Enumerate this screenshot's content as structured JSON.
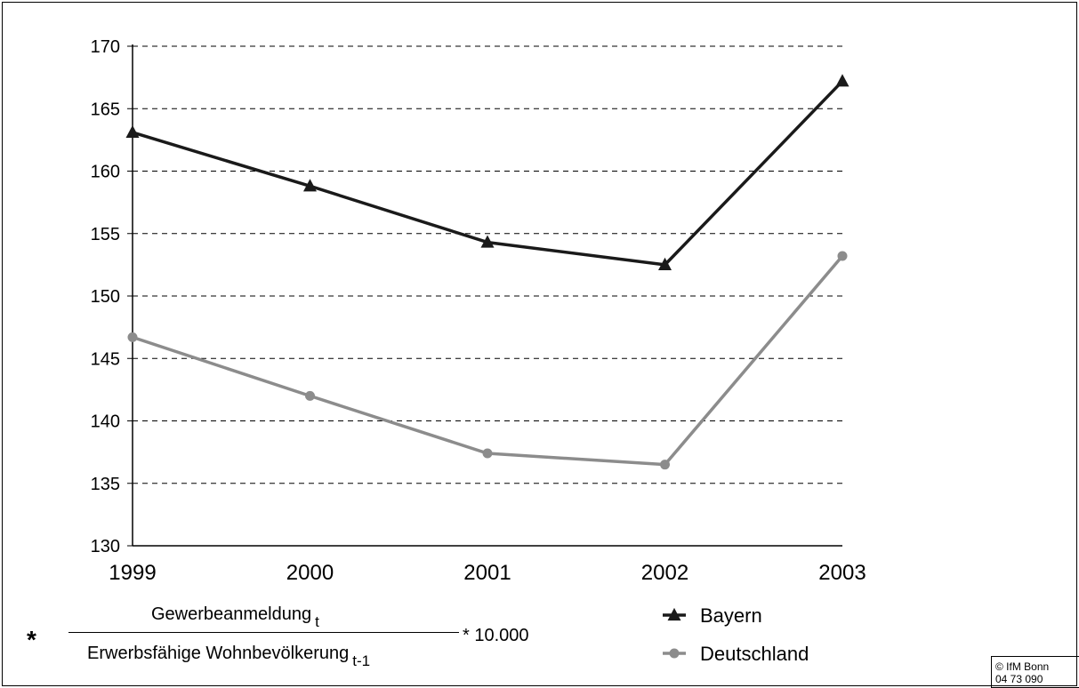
{
  "chart_data": {
    "type": "line",
    "categories": [
      "1999",
      "2000",
      "2001",
      "2002",
      "2003"
    ],
    "ylim": [
      130,
      170
    ],
    "yticks": [
      130,
      135,
      140,
      145,
      150,
      155,
      160,
      165,
      170
    ],
    "grid": true,
    "legend_position": "bottom-center",
    "series": [
      {
        "name": "Bayern",
        "values": [
          163.1,
          158.8,
          154.3,
          152.5,
          167.2
        ],
        "color": "#1a1a1a",
        "marker": "triangle"
      },
      {
        "name": "Deutschland",
        "values": [
          146.7,
          142.0,
          137.4,
          136.5,
          153.2
        ],
        "color": "#8c8c8c",
        "marker": "circle"
      }
    ]
  },
  "footnote": {
    "asterisk": "*",
    "numerator": "Gewerbeanmeldung",
    "numerator_sub": "t",
    "denominator": "Erwerbsfähige Wohnbevölkerung",
    "denominator_sub": "t-1",
    "multiplier": "* 10.000"
  },
  "credit": {
    "line1": "© IfM Bonn",
    "line2": "04 73 090"
  }
}
